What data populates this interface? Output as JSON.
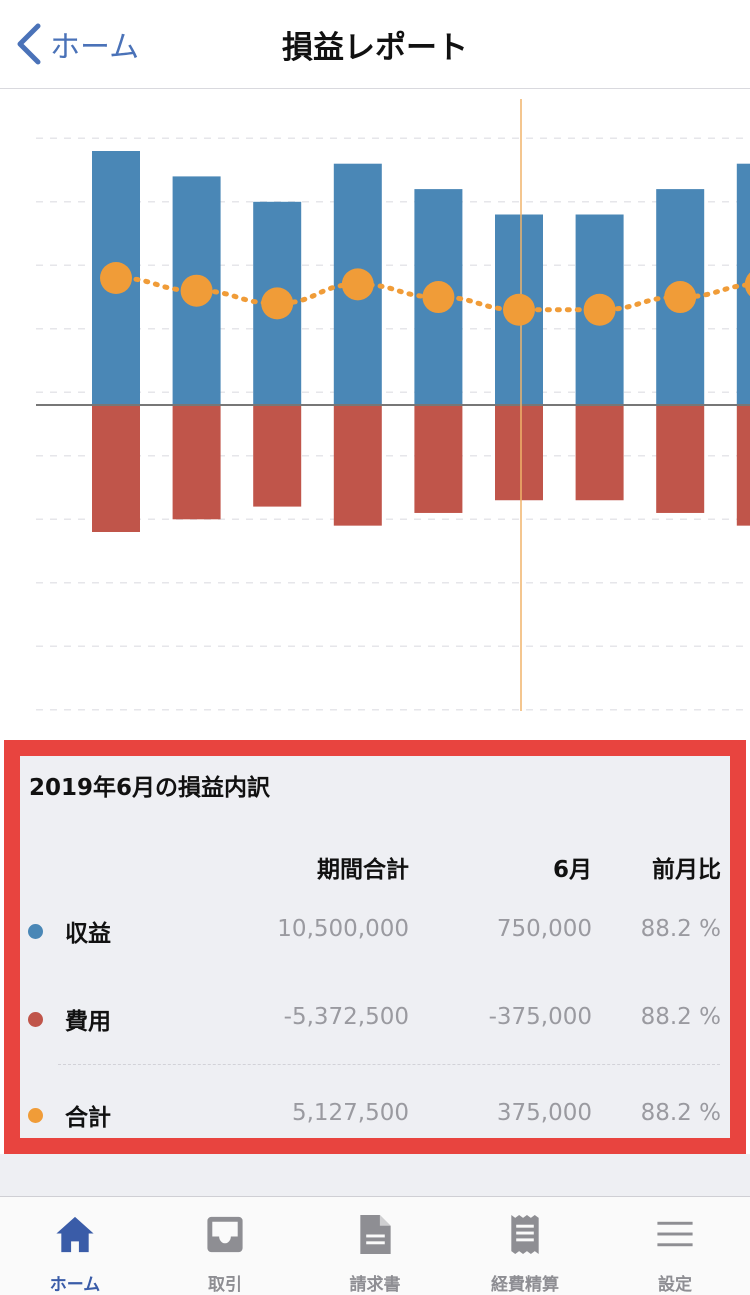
{
  "header": {
    "back_label": "ホーム",
    "title": "損益レポート"
  },
  "chart_data": {
    "type": "bar",
    "categories": [
      "",
      "",
      "",
      "",
      "",
      "",
      "",
      "",
      ""
    ],
    "series": [
      {
        "values": [
          1000000,
          900000,
          800000,
          950000,
          850000,
          750000,
          750000,
          850000,
          950000
        ],
        "color": "#4a87b6"
      },
      {
        "values": [
          -500000,
          -450000,
          -400000,
          -475000,
          -425000,
          -375000,
          -375000,
          -425000,
          -475000
        ],
        "color": "#c0554a"
      },
      {
        "type": "line",
        "style": "dotted",
        "values": [
          500000,
          450000,
          400000,
          475000,
          425000,
          375000,
          375000,
          425000,
          475000
        ],
        "color": "#f09c38"
      }
    ],
    "ylim": [
      -1200000,
      1200000
    ],
    "grid": true,
    "highlight_index": 5,
    "clipped_right": true
  },
  "breakdown": {
    "title": "2019年6月の損益内訳",
    "columns": [
      "期間合計",
      "6月",
      "前月比"
    ],
    "rows": [
      {
        "label": "収益",
        "color": "#4a87b6",
        "total": "10,500,000",
        "month": "750,000",
        "ratio": "88.2 %"
      },
      {
        "label": "費用",
        "color": "#c0554a",
        "total": "-5,372,500",
        "month": "-375,000",
        "ratio": "88.2 %"
      },
      {
        "label": "合計",
        "color": "#f09c38",
        "total": "5,127,500",
        "month": "375,000",
        "ratio": "88.2 %"
      }
    ]
  },
  "tabs": [
    {
      "label": "ホーム",
      "icon": "home-icon",
      "active": true
    },
    {
      "label": "取引",
      "icon": "inbox-icon",
      "active": false
    },
    {
      "label": "請求書",
      "icon": "document-icon",
      "active": false
    },
    {
      "label": "経費精算",
      "icon": "receipt-icon",
      "active": false
    },
    {
      "label": "設定",
      "icon": "menu-icon",
      "active": false
    }
  ]
}
